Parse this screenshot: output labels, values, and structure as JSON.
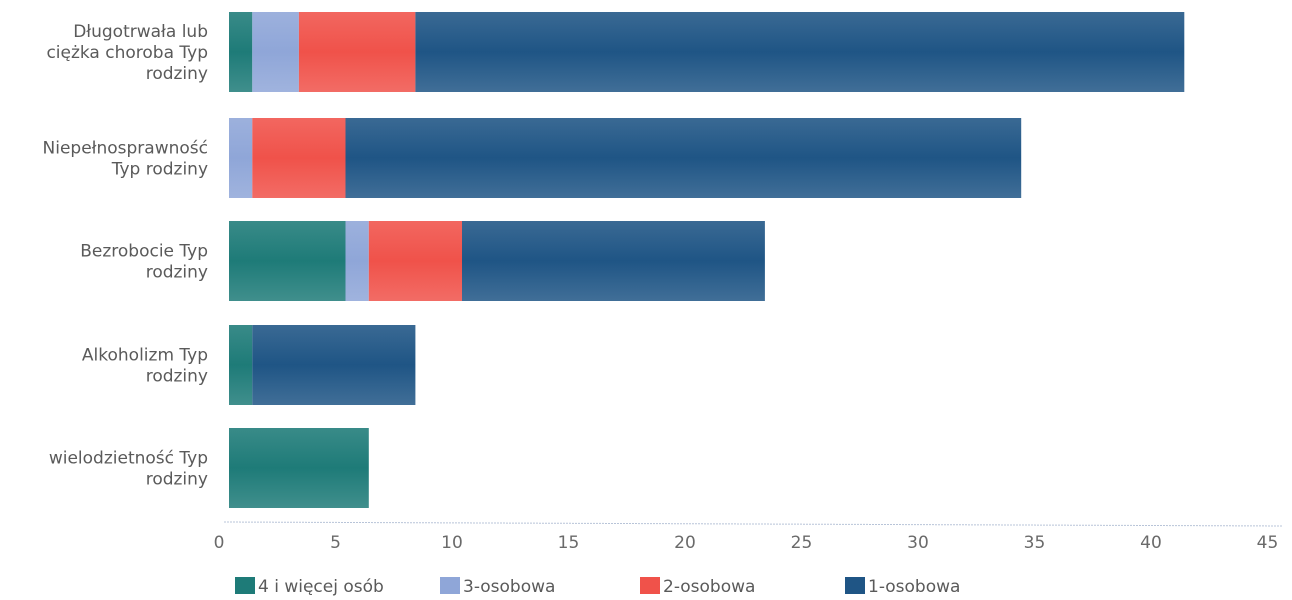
{
  "chart_data": {
    "type": "bar",
    "orientation": "horizontal",
    "stacked": true,
    "categories": [
      [
        "Długotrwała lub",
        "ciężka choroba Typ",
        "rodziny"
      ],
      [
        "Niepełnosprawność",
        "Typ rodziny"
      ],
      [
        "Bezrobocie Typ",
        "rodziny"
      ],
      [
        "Alkoholizm Typ",
        "rodziny"
      ],
      [
        "wielodzietność Typ",
        "rodziny"
      ]
    ],
    "series": [
      {
        "name": "4  i więcej osób",
        "color": "#1e7b78",
        "values": [
          1,
          0,
          5,
          1,
          6
        ]
      },
      {
        "name": "3-osobowa",
        "color": "#8fa6d8",
        "values": [
          2,
          1,
          1,
          0,
          0
        ]
      },
      {
        "name": "2-osobowa",
        "color": "#f0524a",
        "values": [
          5,
          4,
          4,
          0,
          0
        ]
      },
      {
        "name": "1-osobowa",
        "color": "#1f5585",
        "values": [
          33,
          29,
          13,
          7,
          0
        ]
      }
    ],
    "xlim": [
      0,
      45
    ],
    "xticks": [
      0,
      5,
      10,
      15,
      20,
      25,
      30,
      35,
      40,
      45
    ],
    "grid": false,
    "legend_position": "bottom"
  }
}
